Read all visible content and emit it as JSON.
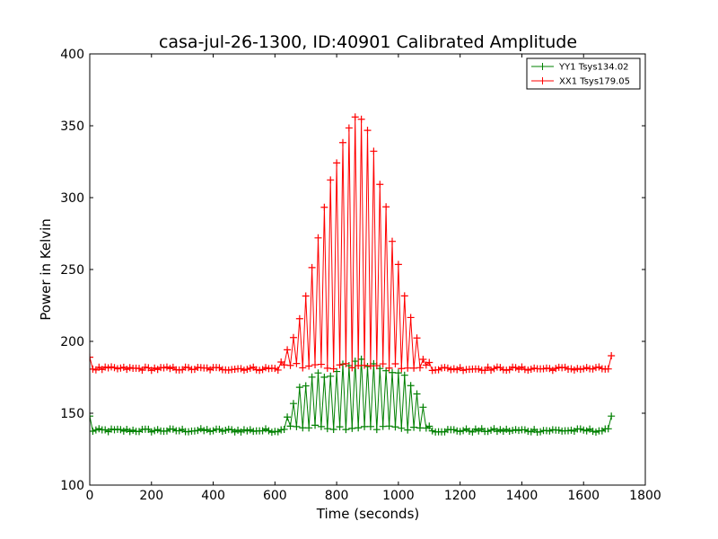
{
  "chart_data": {
    "type": "line",
    "title": "casa-jul-26-1300, ID:40901 Calibrated Amplitude",
    "xlabel": "Time (seconds)",
    "ylabel": "Power in Kelvin",
    "xlim": [
      0,
      1800
    ],
    "ylim": [
      100,
      400
    ],
    "xticks": [
      0,
      200,
      400,
      600,
      800,
      1000,
      1200,
      1400,
      1600,
      1800
    ],
    "yticks": [
      100,
      150,
      200,
      250,
      300,
      350,
      400
    ],
    "legend_position": "top-right",
    "sample_step_seconds": 10,
    "series": [
      {
        "name": "YY1 Tsys134.02",
        "color": "#008000",
        "baseline": 138,
        "points": [
          [
            0,
            138
          ],
          [
            550,
            139
          ],
          [
            600,
            140
          ],
          [
            620,
            143
          ],
          [
            640,
            150
          ],
          [
            660,
            160
          ],
          [
            680,
            168
          ],
          [
            700,
            173
          ],
          [
            720,
            176
          ],
          [
            740,
            178
          ],
          [
            760,
            180
          ],
          [
            800,
            183
          ],
          [
            840,
            186
          ],
          [
            870,
            188
          ],
          [
            900,
            187
          ],
          [
            940,
            185
          ],
          [
            980,
            182
          ],
          [
            1020,
            178
          ],
          [
            1040,
            175
          ],
          [
            1060,
            168
          ],
          [
            1080,
            155
          ],
          [
            1100,
            145
          ],
          [
            1120,
            141
          ],
          [
            1200,
            139
          ],
          [
            1690,
            138
          ]
        ]
      },
      {
        "name": "XX1 Tsys179.05",
        "color": "#ff0000",
        "baseline": 181,
        "points": [
          [
            0,
            181
          ],
          [
            560,
            182
          ],
          [
            600,
            184
          ],
          [
            630,
            190
          ],
          [
            660,
            205
          ],
          [
            690,
            228
          ],
          [
            720,
            255
          ],
          [
            750,
            285
          ],
          [
            780,
            315
          ],
          [
            810,
            338
          ],
          [
            840,
            352
          ],
          [
            860,
            358
          ],
          [
            880,
            357
          ],
          [
            900,
            348
          ],
          [
            930,
            325
          ],
          [
            960,
            295
          ],
          [
            990,
            265
          ],
          [
            1020,
            235
          ],
          [
            1050,
            210
          ],
          [
            1080,
            193
          ],
          [
            1110,
            185
          ],
          [
            1150,
            182
          ],
          [
            1300,
            181
          ],
          [
            1690,
            180
          ]
        ]
      }
    ]
  }
}
